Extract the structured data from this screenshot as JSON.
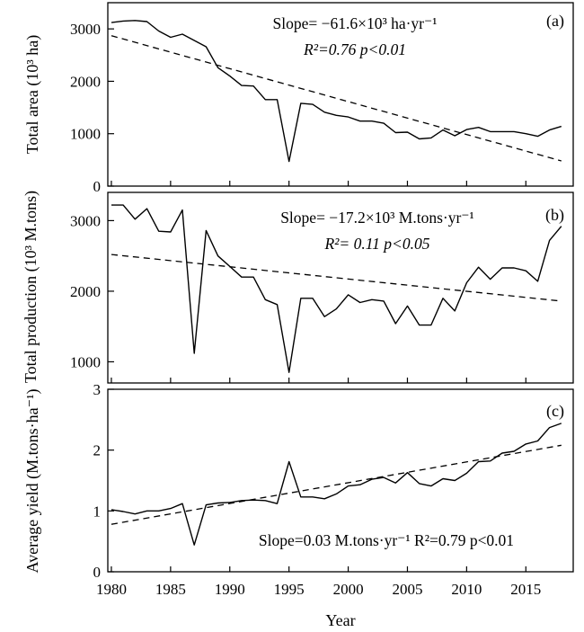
{
  "figure": {
    "xlabel": "Year"
  },
  "chart_data": [
    {
      "type": "line",
      "panel": "(a)",
      "ylabel": "Total area (10³ ha)",
      "ylim": [
        0,
        3500
      ],
      "yticks": [
        0,
        1000,
        2000,
        3000
      ],
      "xlim": [
        1979.7,
        2019.0
      ],
      "xticks": [
        1980,
        1985,
        1990,
        1995,
        2000,
        2005,
        2010,
        2015
      ],
      "annotation_line1": "Slope= −61.6×10³ ha·yr⁻¹",
      "annotation_line2": "R²=0.76   p<0.01",
      "series": [
        {
          "style": "solid",
          "x": [
            1980,
            1981,
            1982,
            1983,
            1984,
            1985,
            1986,
            1987,
            1988,
            1989,
            1990,
            1991,
            1992,
            1993,
            1994,
            1995,
            1996,
            1997,
            1998,
            1999,
            2000,
            2001,
            2002,
            2003,
            2004,
            2005,
            2006,
            2007,
            2008,
            2009,
            2010,
            2011,
            2012,
            2013,
            2014,
            2015,
            2016,
            2017,
            2018
          ],
          "y": [
            3120,
            3150,
            3160,
            3140,
            2960,
            2840,
            2900,
            2780,
            2660,
            2260,
            2100,
            1920,
            1910,
            1650,
            1650,
            470,
            1580,
            1560,
            1410,
            1350,
            1320,
            1240,
            1240,
            1200,
            1020,
            1030,
            900,
            920,
            1070,
            960,
            1080,
            1120,
            1040,
            1040,
            1040,
            1000,
            950,
            1070,
            1140
          ]
        },
        {
          "style": "dashed",
          "x": [
            1980,
            2018
          ],
          "y": [
            2870,
            480
          ]
        }
      ]
    },
    {
      "type": "line",
      "panel": "(b)",
      "ylabel": "Total production (10³ M.tons)",
      "ylim": [
        700,
        3400
      ],
      "yticks": [
        1000,
        2000,
        3000
      ],
      "xlim": [
        1979.7,
        2019.0
      ],
      "xticks": [
        1980,
        1985,
        1990,
        1995,
        2000,
        2005,
        2010,
        2015
      ],
      "annotation_line1": "Slope= −17.2×10³ M.tons·yr⁻¹",
      "annotation_line2": "R²= 0.11   p<0.05",
      "series": [
        {
          "style": "solid",
          "x": [
            1980,
            1981,
            1982,
            1983,
            1984,
            1985,
            1986,
            1987,
            1988,
            1989,
            1990,
            1991,
            1992,
            1993,
            1994,
            1995,
            1996,
            1997,
            1998,
            1999,
            2000,
            2001,
            2002,
            2003,
            2004,
            2005,
            2006,
            2007,
            2008,
            2009,
            2010,
            2011,
            2012,
            2013,
            2014,
            2015,
            2016,
            2017,
            2018
          ],
          "y": [
            3220,
            3220,
            3020,
            3170,
            2850,
            2840,
            3150,
            1120,
            2860,
            2500,
            2350,
            2200,
            2200,
            1880,
            1810,
            850,
            1900,
            1900,
            1640,
            1750,
            1950,
            1840,
            1880,
            1860,
            1540,
            1790,
            1520,
            1520,
            1900,
            1720,
            2120,
            2340,
            2170,
            2330,
            2330,
            2290,
            2140,
            2720,
            2920
          ]
        },
        {
          "style": "dashed",
          "x": [
            1980,
            2018
          ],
          "y": [
            2520,
            1860
          ]
        }
      ]
    },
    {
      "type": "line",
      "panel": "(c)",
      "ylabel": "Average yield (M.tons·ha⁻¹)",
      "ylim": [
        0,
        3
      ],
      "yticks": [
        0,
        1,
        2,
        3
      ],
      "xlim": [
        1979.7,
        2019.0
      ],
      "xticks": [
        1980,
        1985,
        1990,
        1995,
        2000,
        2005,
        2010,
        2015
      ],
      "annotation": "Slope=0.03 M.tons·yr⁻¹    R²=0.79    p<0.01",
      "series": [
        {
          "style": "solid",
          "x": [
            1980,
            1981,
            1982,
            1983,
            1984,
            1985,
            1986,
            1987,
            1988,
            1989,
            1990,
            1991,
            1992,
            1993,
            1994,
            1995,
            1996,
            1997,
            1998,
            1999,
            2000,
            2001,
            2002,
            2003,
            2004,
            2005,
            2006,
            2007,
            2008,
            2009,
            2010,
            2011,
            2012,
            2013,
            2014,
            2015,
            2016,
            2017,
            2018
          ],
          "y": [
            1.02,
            0.99,
            0.95,
            1.0,
            1.0,
            1.04,
            1.12,
            0.44,
            1.1,
            1.13,
            1.14,
            1.17,
            1.18,
            1.17,
            1.12,
            1.81,
            1.23,
            1.23,
            1.2,
            1.28,
            1.41,
            1.43,
            1.52,
            1.55,
            1.46,
            1.63,
            1.45,
            1.41,
            1.53,
            1.5,
            1.62,
            1.81,
            1.82,
            1.95,
            1.98,
            2.1,
            2.15,
            2.37,
            2.44
          ]
        },
        {
          "style": "dashed",
          "x": [
            1980,
            2018
          ],
          "y": [
            0.78,
            2.08
          ]
        }
      ]
    }
  ]
}
